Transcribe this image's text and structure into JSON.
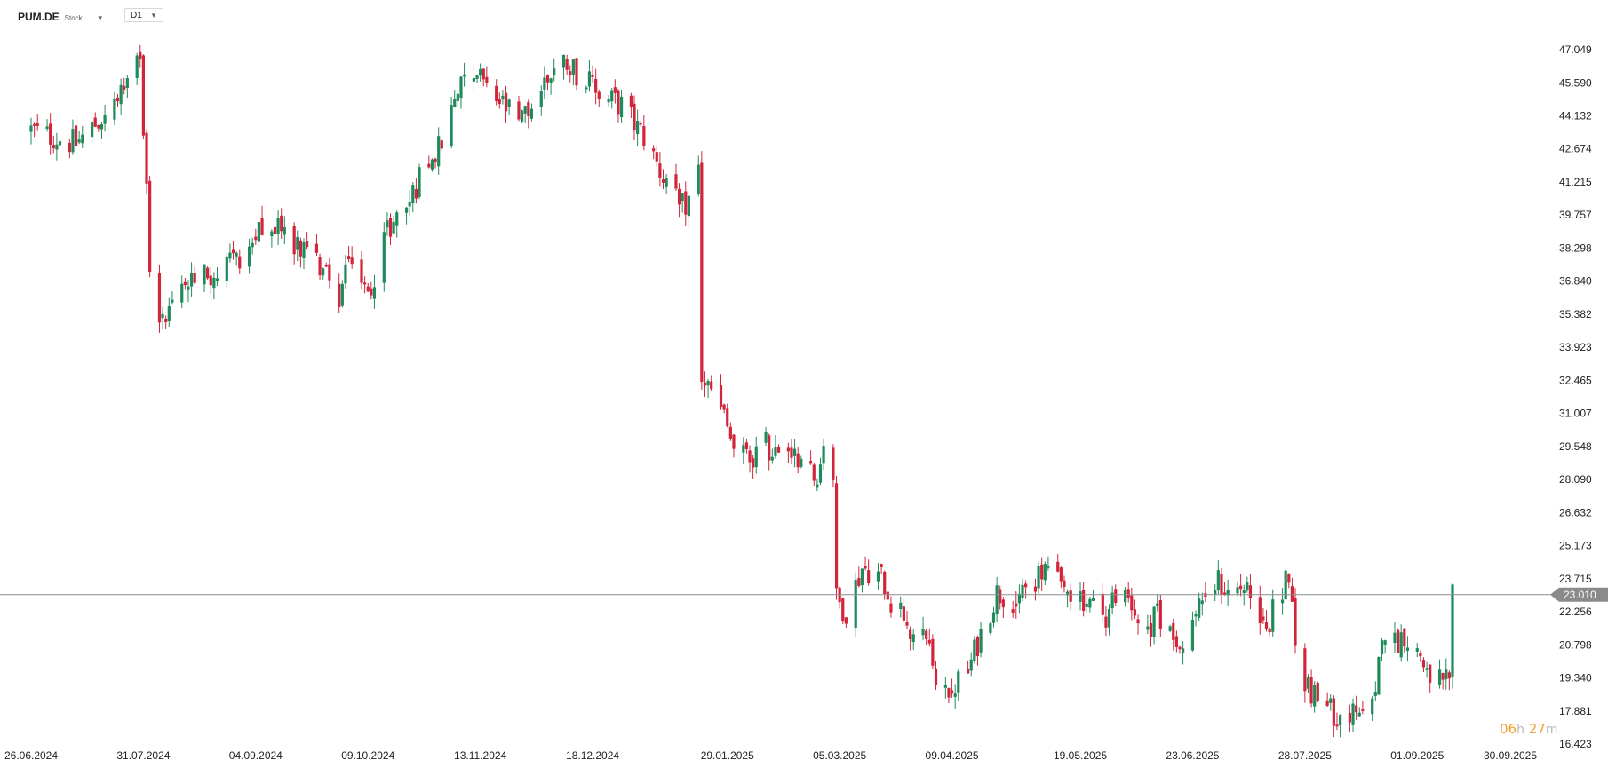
{
  "toolbar": {
    "symbol": "PUM.DE",
    "symbol_type": "Stock",
    "timeframe": "D1"
  },
  "countdown": {
    "hours": "06",
    "hours_unit": "h",
    "minutes": "27",
    "minutes_unit": "m"
  },
  "colors": {
    "up": "#1f8a5c",
    "down": "#d2243a",
    "price_line": "#8c8c8c",
    "price_tag": "#8a8a8a"
  },
  "chart_data": {
    "type": "candlestick",
    "symbol": "PUM.DE",
    "timeframe": "D1",
    "current_price": "23.010",
    "current_price_value": 23.01,
    "ylim": [
      16.423,
      47.049
    ],
    "y_ticks": [
      "47.049",
      "45.590",
      "44.132",
      "42.674",
      "41.215",
      "39.757",
      "38.298",
      "36.840",
      "35.382",
      "33.923",
      "32.465",
      "31.007",
      "29.548",
      "28.090",
      "26.632",
      "25.173",
      "23.715",
      "22.256",
      "20.798",
      "19.340",
      "17.881",
      "16.423"
    ],
    "x_ticks": [
      "26.06.2024",
      "31.07.2024",
      "04.09.2024",
      "09.10.2024",
      "13.11.2024",
      "18.12.2024",
      "29.01.2025",
      "05.03.2025",
      "09.04.2025",
      "19.05.2025",
      "23.06.2025",
      "28.07.2025",
      "01.09.2025",
      "30.09.2025"
    ],
    "grid": false,
    "close_path": [
      [
        "26.06.2024",
        43.5
      ],
      [
        "10.07.2024",
        42.9
      ],
      [
        "24.07.2024",
        44.9
      ],
      [
        "30.07.2024",
        46.4
      ],
      [
        "31.07.2024",
        43.8
      ],
      [
        "01.08.2024",
        41.2
      ],
      [
        "02.08.2024",
        37.6
      ],
      [
        "06.08.2024",
        35.0
      ],
      [
        "13.08.2024",
        36.9
      ],
      [
        "26.08.2024",
        37.3
      ],
      [
        "04.09.2024",
        38.9
      ],
      [
        "12.09.2024",
        39.3
      ],
      [
        "20.09.2024",
        38.0
      ],
      [
        "27.09.2024",
        37.2
      ],
      [
        "30.09.2024",
        35.6
      ],
      [
        "03.10.2024",
        38.4
      ],
      [
        "07.10.2024",
        36.8
      ],
      [
        "09.10.2024",
        36.1
      ],
      [
        "14.10.2024",
        38.9
      ],
      [
        "22.10.2024",
        40.4
      ],
      [
        "28.10.2024",
        42.4
      ],
      [
        "01.11.2024",
        42.8
      ],
      [
        "06.11.2024",
        45.4
      ],
      [
        "08.11.2024",
        46.5
      ],
      [
        "13.11.2024",
        46.0
      ],
      [
        "15.11.2024",
        45.1
      ],
      [
        "20.11.2024",
        44.6
      ],
      [
        "25.11.2024",
        43.7
      ],
      [
        "29.11.2024",
        44.6
      ],
      [
        "05.12.2024",
        46.1
      ],
      [
        "10.12.2024",
        46.6
      ],
      [
        "16.12.2024",
        45.6
      ],
      [
        "20.12.2024",
        45.1
      ],
      [
        "27.12.2024",
        44.6
      ],
      [
        "03.01.2025",
        43.2
      ],
      [
        "09.01.2025",
        41.4
      ],
      [
        "14.01.2025",
        40.0
      ],
      [
        "17.01.2025",
        40.4
      ],
      [
        "20.01.2025",
        41.8
      ],
      [
        "21.01.2025",
        32.6
      ],
      [
        "24.01.2025",
        31.9
      ],
      [
        "28.01.2025",
        30.8
      ],
      [
        "31.01.2025",
        29.4
      ],
      [
        "05.02.2025",
        29.0
      ],
      [
        "10.02.2025",
        29.6
      ],
      [
        "14.02.2025",
        29.1
      ],
      [
        "18.02.2025",
        28.6
      ],
      [
        "21.02.2025",
        29.6
      ],
      [
        "26.02.2025",
        27.6
      ],
      [
        "28.02.2025",
        29.9
      ],
      [
        "03.03.2025",
        28.3
      ],
      [
        "04.03.2025",
        22.8
      ],
      [
        "07.03.2025",
        22.3
      ],
      [
        "12.03.2025",
        24.2
      ],
      [
        "18.03.2025",
        23.9
      ],
      [
        "21.03.2025",
        22.8
      ],
      [
        "25.03.2025",
        22.2
      ],
      [
        "28.03.2025",
        21.3
      ],
      [
        "02.04.2025",
        20.9
      ],
      [
        "04.04.2025",
        18.7
      ],
      [
        "09.04.2025",
        18.9
      ],
      [
        "14.04.2025",
        19.6
      ],
      [
        "17.04.2025",
        20.9
      ],
      [
        "23.04.2025",
        23.1
      ],
      [
        "29.04.2025",
        22.8
      ],
      [
        "05.05.2025",
        23.6
      ],
      [
        "09.05.2025",
        24.1
      ],
      [
        "13.05.2025",
        23.2
      ],
      [
        "19.05.2025",
        23.0
      ],
      [
        "22.05.2025",
        22.6
      ],
      [
        "27.05.2025",
        21.9
      ],
      [
        "30.05.2025",
        23.2
      ],
      [
        "04.06.2025",
        22.3
      ],
      [
        "09.06.2025",
        21.6
      ],
      [
        "12.06.2025",
        22.1
      ],
      [
        "16.06.2025",
        21.4
      ],
      [
        "20.06.2025",
        21.2
      ],
      [
        "23.06.2025",
        21.6
      ],
      [
        "26.06.2025",
        23.1
      ],
      [
        "01.07.2025",
        23.6
      ],
      [
        "04.07.2025",
        23.1
      ],
      [
        "09.07.2025",
        23.4
      ],
      [
        "14.07.2025",
        22.3
      ],
      [
        "17.07.2025",
        21.9
      ],
      [
        "21.07.2025",
        23.4
      ],
      [
        "23.07.2025",
        24.1
      ],
      [
        "25.07.2025",
        20.6
      ],
      [
        "28.07.2025",
        19.4
      ],
      [
        "31.07.2025",
        18.5
      ],
      [
        "05.08.2025",
        17.9
      ],
      [
        "11.08.2025",
        17.7
      ],
      [
        "15.08.2025",
        17.4
      ],
      [
        "19.08.2025",
        18.2
      ],
      [
        "21.08.2025",
        21.6
      ],
      [
        "25.08.2025",
        20.9
      ],
      [
        "28.08.2025",
        21.3
      ],
      [
        "02.09.2025",
        20.2
      ],
      [
        "05.09.2025",
        19.6
      ],
      [
        "09.09.2025",
        18.9
      ],
      [
        "11.09.2025",
        19.4
      ],
      [
        "12.09.2025",
        23.0
      ]
    ]
  }
}
